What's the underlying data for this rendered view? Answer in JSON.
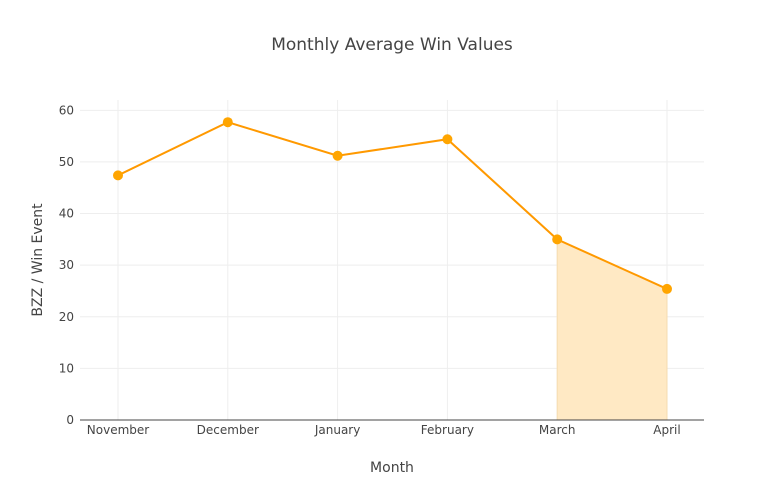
{
  "chart_data": {
    "type": "line",
    "title": "Monthly Average Win Values",
    "xlabel": "Month",
    "ylabel": "BZZ / Win Event",
    "categories": [
      "November",
      "December",
      "January",
      "February",
      "March",
      "April"
    ],
    "values": [
      47.4,
      57.7,
      51.2,
      54.4,
      35.0,
      25.4
    ],
    "ylim": [
      0,
      62
    ],
    "yticks": [
      0,
      10,
      20,
      30,
      40,
      50,
      60
    ],
    "grid": true,
    "shaded_range": [
      "March",
      "April"
    ],
    "colors": {
      "line": "#ff9900",
      "marker": "#ffa500",
      "shade": "#ffe9c4",
      "ylabel": "#5a2040"
    }
  }
}
